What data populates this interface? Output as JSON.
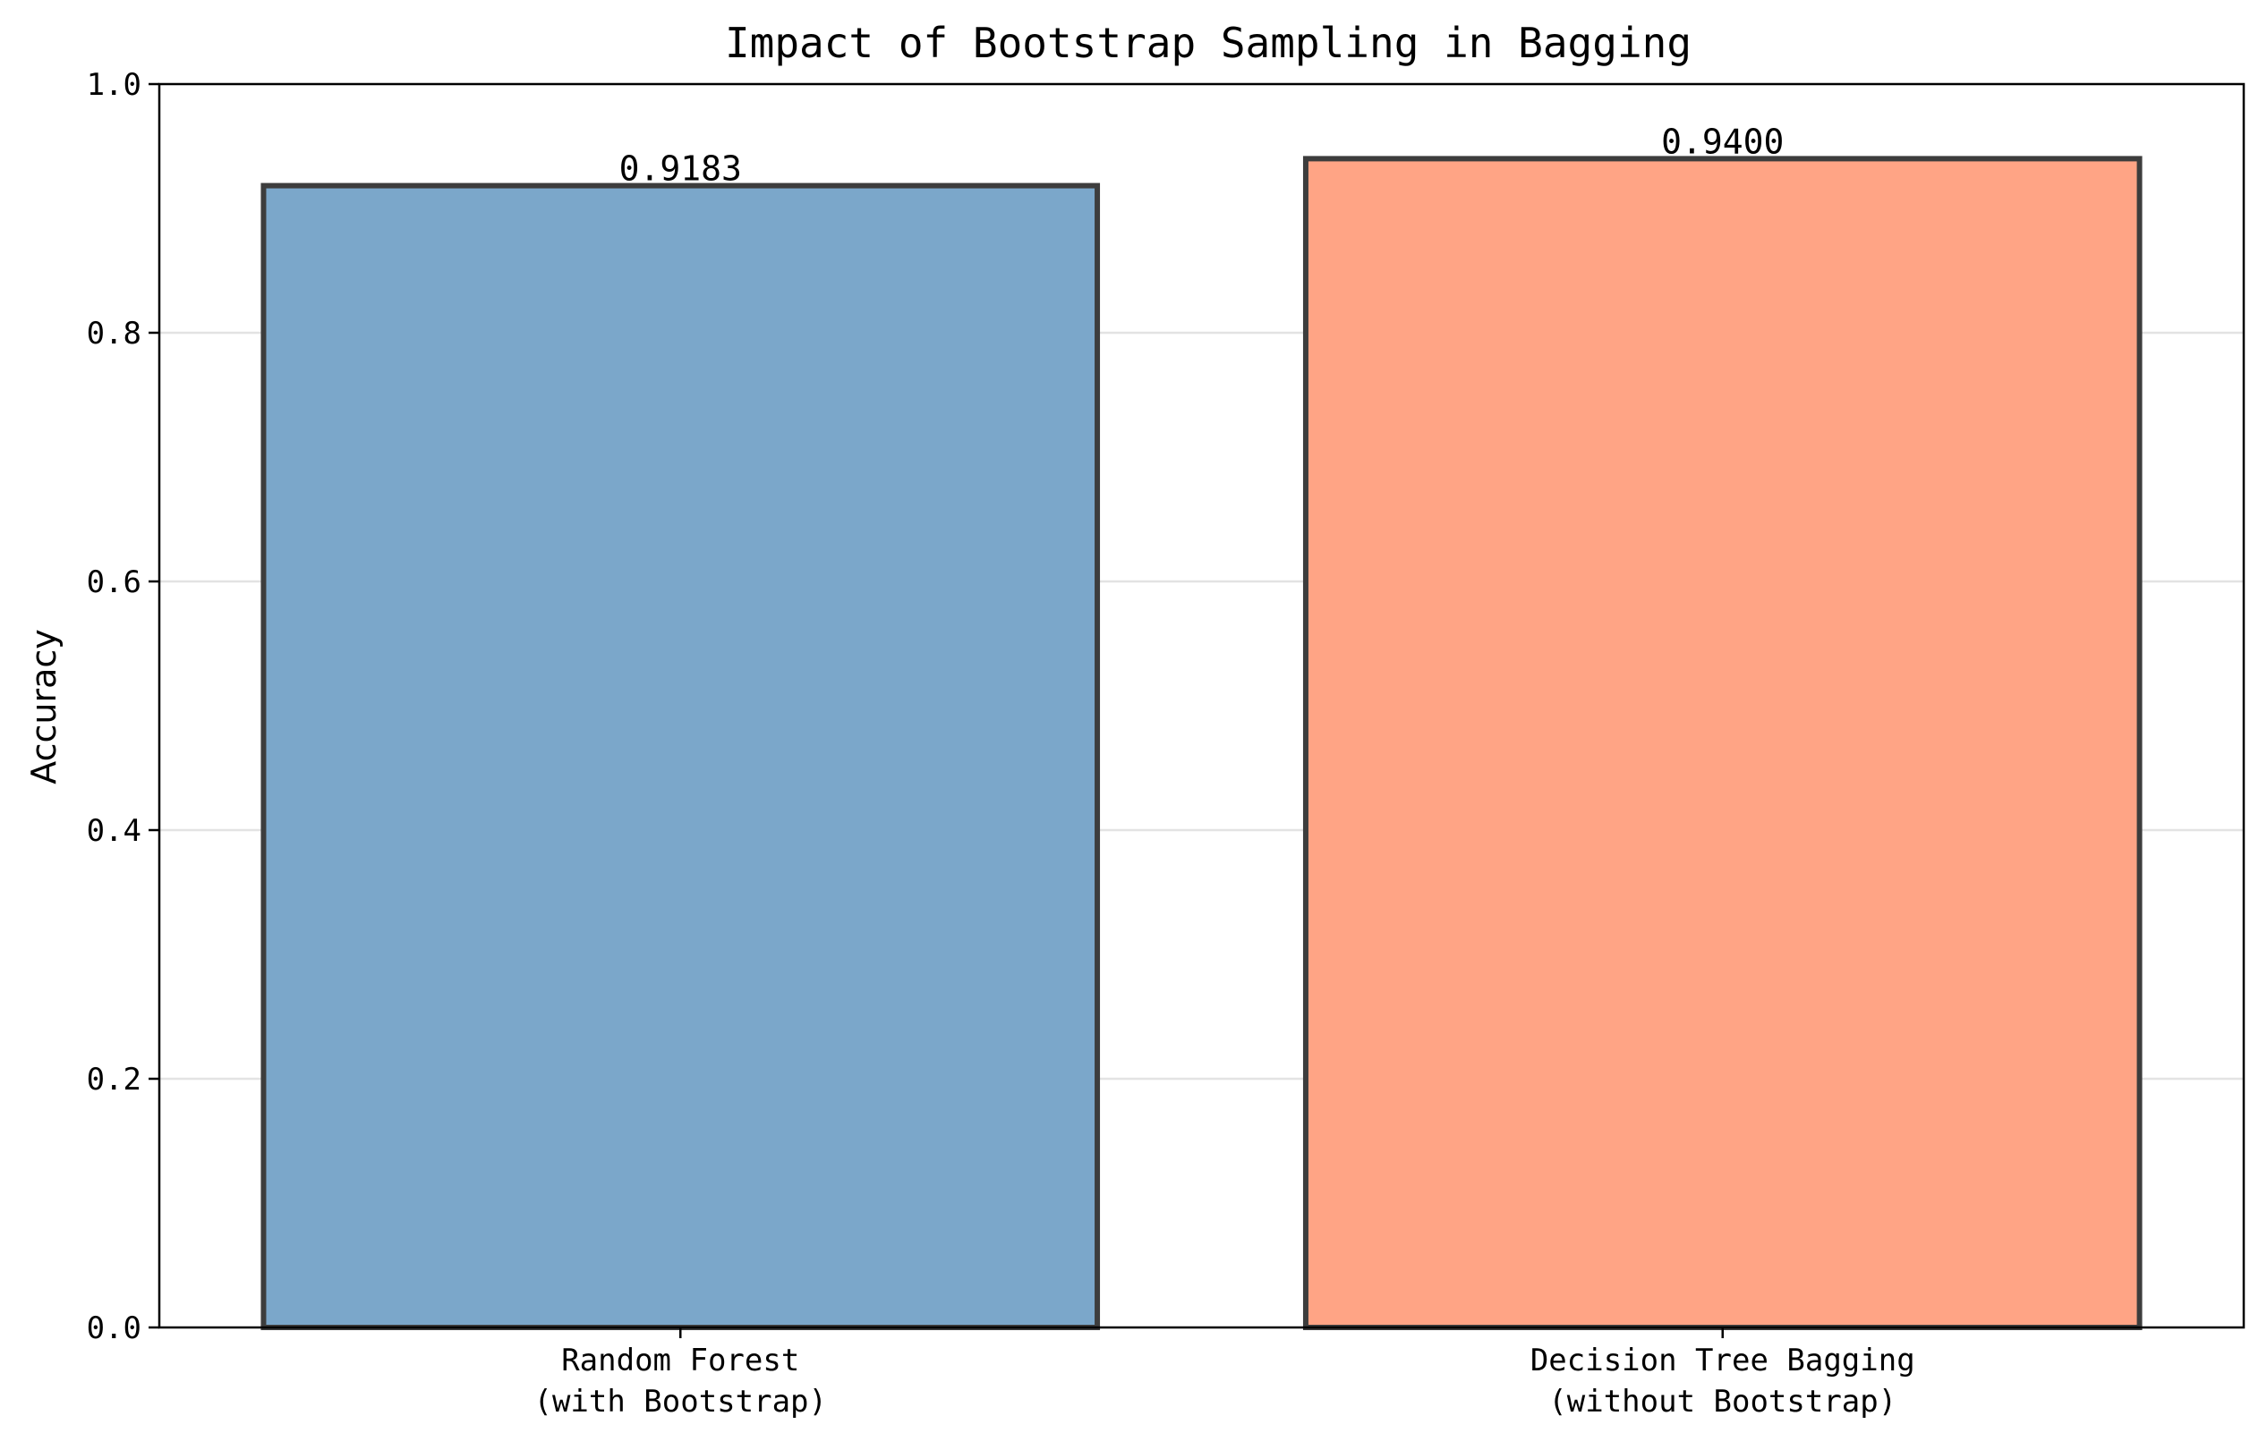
{
  "chart_data": {
    "type": "bar",
    "title": "Impact of Bootstrap Sampling in Bagging",
    "xlabel": "",
    "ylabel": "Accuracy",
    "ylim": [
      0,
      1.0
    ],
    "yticks": [
      "0.0",
      "0.2",
      "0.4",
      "0.6",
      "0.8",
      "1.0"
    ],
    "grid": "y",
    "categories": [
      [
        "Random Forest",
        "(with Bootstrap)"
      ],
      [
        "Decision Tree Bagging",
        "(without Bootstrap)"
      ]
    ],
    "values": [
      0.9183,
      0.94
    ],
    "value_labels": [
      "0.9183",
      "0.9400"
    ],
    "colors": [
      "#7ba7ca",
      "#ffa485"
    ],
    "edge_color": "#3d3d3d"
  }
}
